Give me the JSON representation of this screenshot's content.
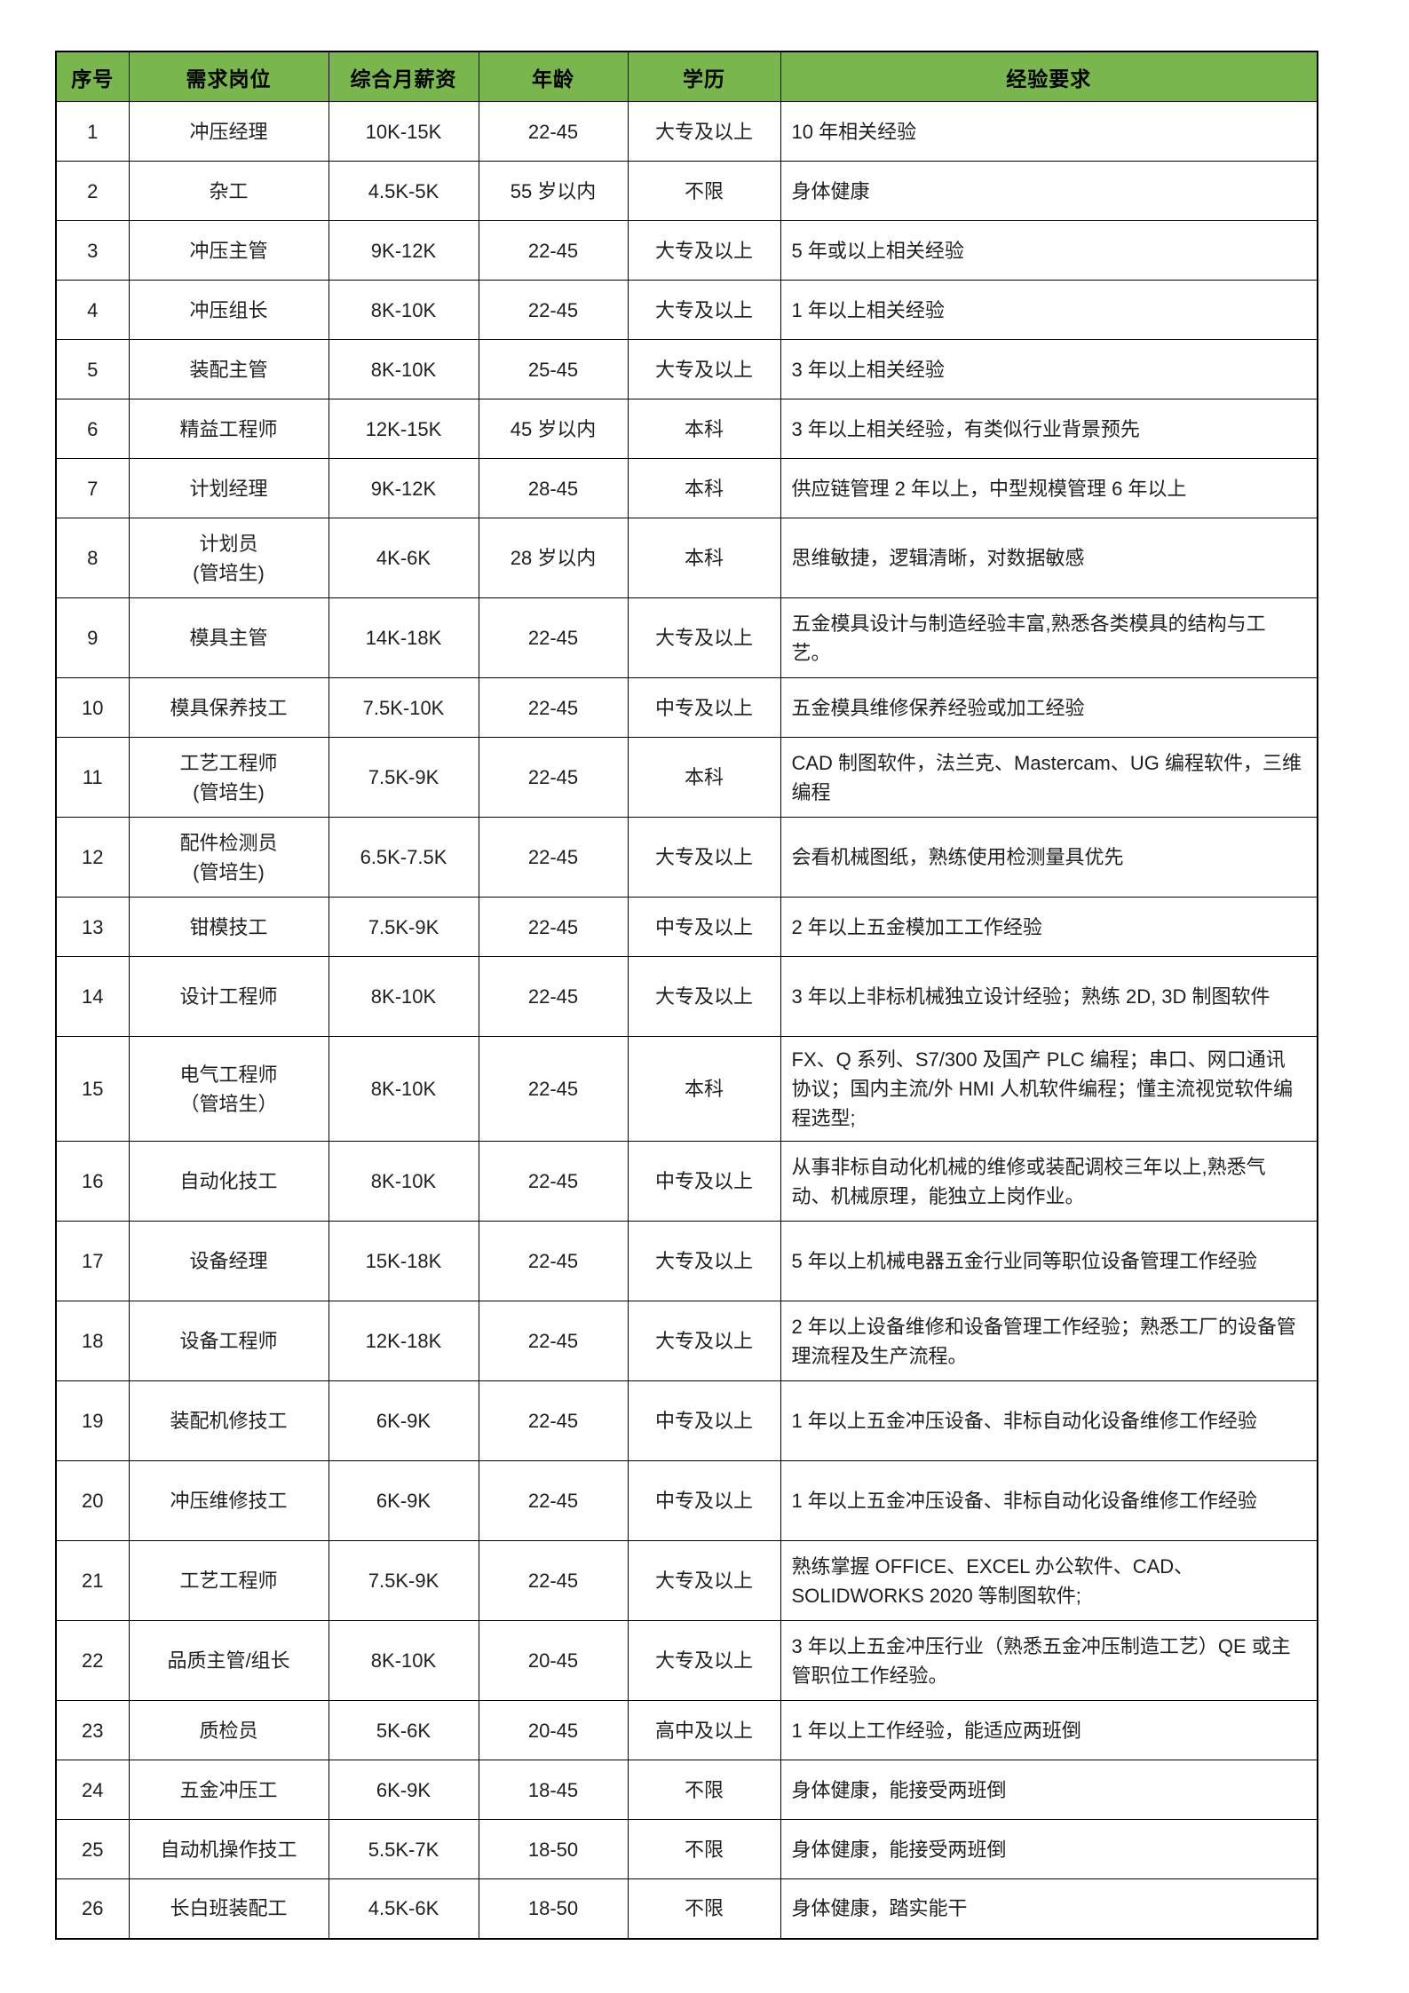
{
  "colors": {
    "header_bg": "#7AB64E",
    "header_text": "#000000",
    "border": "#000000",
    "body_text": "#1F1F1F",
    "page_bg": "#FFFFFF"
  },
  "table": {
    "headers": [
      "序号",
      "需求岗位",
      "综合月薪资",
      "年龄",
      "学历",
      "经验要求"
    ],
    "rows": [
      {
        "no": "1",
        "position": "冲压经理",
        "salary": "10K-15K",
        "age": "22-45",
        "education": "大专及以上",
        "experience": "10 年相关经验"
      },
      {
        "no": "2",
        "position": "杂工",
        "salary": "4.5K-5K",
        "age": "55 岁以内",
        "education": "不限",
        "experience": "身体健康"
      },
      {
        "no": "3",
        "position": "冲压主管",
        "salary": "9K-12K",
        "age": "22-45",
        "education": "大专及以上",
        "experience": "5 年或以上相关经验"
      },
      {
        "no": "4",
        "position": "冲压组长",
        "salary": "8K-10K",
        "age": "22-45",
        "education": "大专及以上",
        "experience": "1 年以上相关经验"
      },
      {
        "no": "5",
        "position": "装配主管",
        "salary": "8K-10K",
        "age": "25-45",
        "education": "大专及以上",
        "experience": "3 年以上相关经验"
      },
      {
        "no": "6",
        "position": "精益工程师",
        "salary": "12K-15K",
        "age": "45 岁以内",
        "education": "本科",
        "experience": "3 年以上相关经验，有类似行业背景预先"
      },
      {
        "no": "7",
        "position": "计划经理",
        "salary": "9K-12K",
        "age": "28-45",
        "education": "本科",
        "experience": "供应链管理 2 年以上，中型规模管理 6 年以上"
      },
      {
        "no": "8",
        "position": "计划员\n(管培生)",
        "salary": "4K-6K",
        "age": "28 岁以内",
        "education": "本科",
        "experience": "思维敏捷，逻辑清晰，对数据敏感"
      },
      {
        "no": "9",
        "position": "模具主管",
        "salary": "14K-18K",
        "age": "22-45",
        "education": "大专及以上",
        "experience": "五金模具设计与制造经验丰富,熟悉各类模具的结构与工艺。"
      },
      {
        "no": "10",
        "position": "模具保养技工",
        "salary": "7.5K-10K",
        "age": "22-45",
        "education": "中专及以上",
        "experience": "五金模具维修保养经验或加工经验"
      },
      {
        "no": "11",
        "position": "工艺工程师\n(管培生)",
        "salary": "7.5K-9K",
        "age": "22-45",
        "education": "本科",
        "experience": "CAD 制图软件，法兰克、Mastercam、UG 编程软件，三维编程"
      },
      {
        "no": "12",
        "position": "配件检测员\n(管培生)",
        "salary": "6.5K-7.5K",
        "age": "22-45",
        "education": "大专及以上",
        "experience": "会看机械图纸，熟练使用检测量具优先"
      },
      {
        "no": "13",
        "position": "钳模技工",
        "salary": "7.5K-9K",
        "age": "22-45",
        "education": "中专及以上",
        "experience": "2 年以上五金模加工工作经验"
      },
      {
        "no": "14",
        "position": "设计工程师",
        "salary": "8K-10K",
        "age": "22-45",
        "education": "大专及以上",
        "experience": "3 年以上非标机械独立设计经验；熟练 2D, 3D 制图软件"
      },
      {
        "no": "15",
        "position": "电气工程师\n（管培生）",
        "salary": "8K-10K",
        "age": "22-45",
        "education": "本科",
        "experience": "FX、Q 系列、S7/300 及国产 PLC 编程；串口、网口通讯协议；国内主流/外 HMI 人机软件编程；懂主流视觉软件编程选型;"
      },
      {
        "no": "16",
        "position": "自动化技工",
        "salary": "8K-10K",
        "age": "22-45",
        "education": "中专及以上",
        "experience": "从事非标自动化机械的维修或装配调校三年以上,熟悉气动、机械原理，能独立上岗作业。"
      },
      {
        "no": "17",
        "position": "设备经理",
        "salary": "15K-18K",
        "age": "22-45",
        "education": "大专及以上",
        "experience": "5 年以上机械电器五金行业同等职位设备管理工作经验"
      },
      {
        "no": "18",
        "position": "设备工程师",
        "salary": "12K-18K",
        "age": "22-45",
        "education": "大专及以上",
        "experience": "2 年以上设备维修和设备管理工作经验；熟悉工厂的设备管理流程及生产流程。"
      },
      {
        "no": "19",
        "position": "装配机修技工",
        "salary": "6K-9K",
        "age": "22-45",
        "education": "中专及以上",
        "experience": "1 年以上五金冲压设备、非标自动化设备维修工作经验"
      },
      {
        "no": "20",
        "position": "冲压维修技工",
        "salary": "6K-9K",
        "age": "22-45",
        "education": "中专及以上",
        "experience": "1 年以上五金冲压设备、非标自动化设备维修工作经验"
      },
      {
        "no": "21",
        "position": "工艺工程师",
        "salary": "7.5K-9K",
        "age": "22-45",
        "education": "大专及以上",
        "experience": "熟练掌握 OFFICE、EXCEL 办公软件、CAD、SOLIDWORKS 2020 等制图软件;"
      },
      {
        "no": "22",
        "position": "品质主管/组长",
        "salary": "8K-10K",
        "age": "20-45",
        "education": "大专及以上",
        "experience": "3 年以上五金冲压行业（熟悉五金冲压制造工艺）QE 或主管职位工作经验。"
      },
      {
        "no": "23",
        "position": "质检员",
        "salary": "5K-6K",
        "age": "20-45",
        "education": "高中及以上",
        "experience": "1 年以上工作经验，能适应两班倒"
      },
      {
        "no": "24",
        "position": "五金冲压工",
        "salary": "6K-9K",
        "age": "18-45",
        "education": "不限",
        "experience": "身体健康，能接受两班倒"
      },
      {
        "no": "25",
        "position": "自动机操作技工",
        "salary": "5.5K-7K",
        "age": "18-50",
        "education": "不限",
        "experience": "身体健康，能接受两班倒"
      },
      {
        "no": "26",
        "position": "长白班装配工",
        "salary": "4.5K-6K",
        "age": "18-50",
        "education": "不限",
        "experience": "身体健康，踏实能干"
      }
    ]
  }
}
